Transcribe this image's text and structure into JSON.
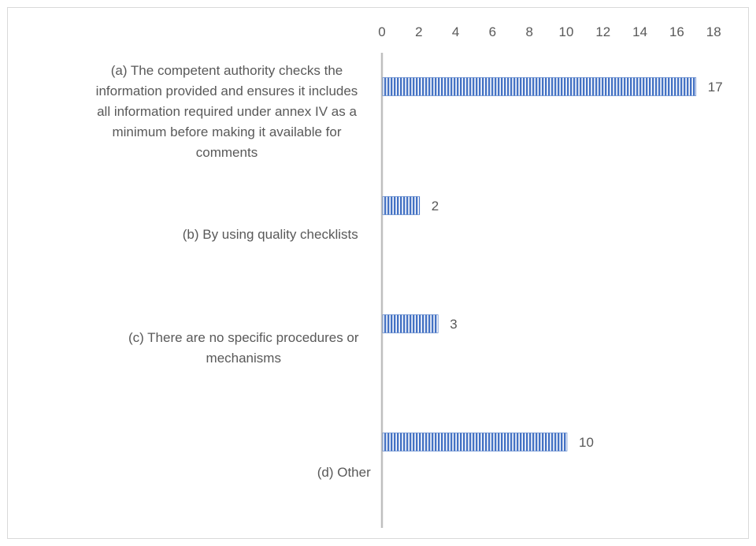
{
  "chart_data": {
    "type": "bar",
    "orientation": "horizontal",
    "title": "",
    "xlabel": "",
    "ylabel": "",
    "xlim": [
      0,
      18
    ],
    "x_ticks": [
      0,
      2,
      4,
      6,
      8,
      10,
      12,
      14,
      16,
      18
    ],
    "x_axis_position": "top",
    "grid": false,
    "legend": "none",
    "categories": [
      "(a) The competent authority checks the information provided and ensures it includes all information required under annex IV as a minimum before making it available for comments",
      "(b) By using quality checklists",
      "(c) There are no specific procedures or mechanisms",
      "(d) Other"
    ],
    "category_lines": [
      [
        "(a) The competent authority checks the",
        "information provided and ensures it includes",
        "all information required under annex IV as a",
        "minimum before making it available for",
        "comments"
      ],
      [
        "(b) By using quality checklists"
      ],
      [
        "(c) There are no specific procedures or",
        "mechanisms"
      ],
      [
        "(d) Other"
      ]
    ],
    "values": [
      17,
      2,
      3,
      10
    ],
    "data_labels": [
      "17",
      "2",
      "3",
      "10"
    ],
    "colors": {
      "bar_fill": "#4472c4",
      "bar_stripe": "#ffffff",
      "axis": "#bfbfbf",
      "text": "#595959",
      "border": "#d9d9d9"
    }
  }
}
